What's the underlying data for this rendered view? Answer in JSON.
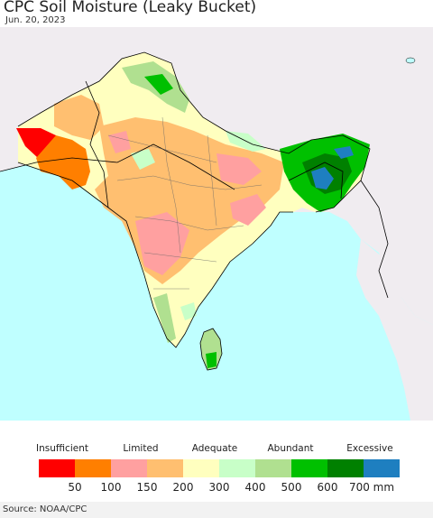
{
  "title": "CPC Soil Moisture (Leaky Bucket)",
  "date": "Jun. 20, 2023",
  "legend": {
    "categories": [
      {
        "label": "Insufficient"
      },
      {
        "label": "Limited"
      },
      {
        "label": "Adequate"
      },
      {
        "label": "Abundant"
      },
      {
        "label": "Excessive"
      }
    ],
    "colors": [
      "#ff0000",
      "#ff7f00",
      "#ffa0a0",
      "#ffbf70",
      "#ffffbf",
      "#c8ffc8",
      "#b0e090",
      "#00c000",
      "#008000",
      "#1e7fc0"
    ],
    "ticks": [
      "50",
      "100",
      "150",
      "200",
      "300",
      "400",
      "500",
      "600",
      "700 mm"
    ]
  },
  "source": "Source: NOAA/CPC",
  "colors": {
    "ocean": "#bfffff",
    "land_outside": "#f0ecf0",
    "border": "#000000"
  }
}
